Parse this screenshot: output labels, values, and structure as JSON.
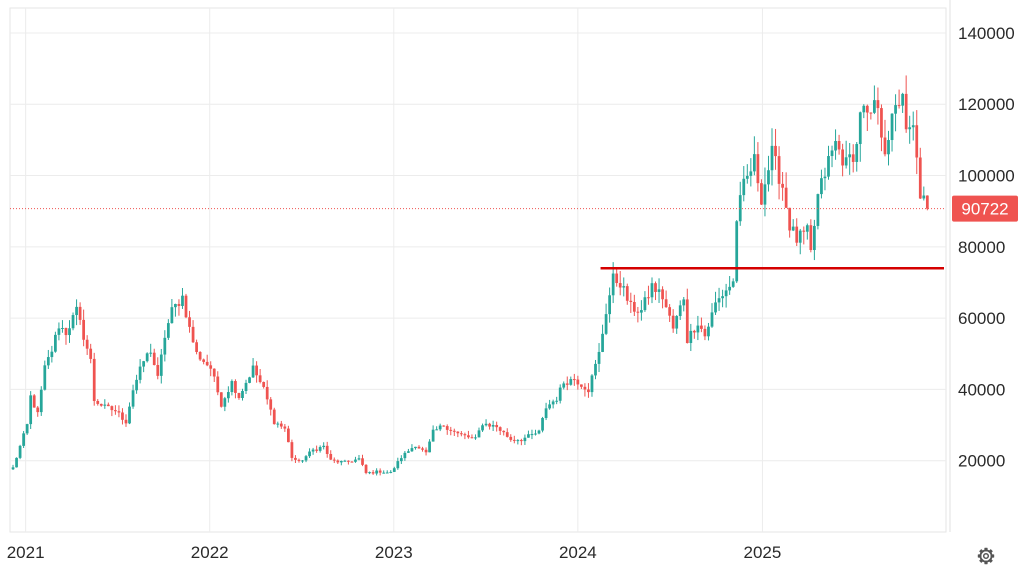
{
  "chart_data": {
    "type": "candlestick",
    "x_tick_labels": [
      "2021",
      "2022",
      "2023",
      "2024",
      "2025"
    ],
    "y_tick_labels": [
      "20000",
      "40000",
      "60000",
      "80000",
      "100000",
      "120000",
      "140000"
    ],
    "y_ticks": [
      20000,
      40000,
      60000,
      80000,
      100000,
      120000,
      140000
    ],
    "ylim": [
      0,
      147000
    ],
    "xlim": [
      "2020-12-01",
      "2025-12-31"
    ],
    "grid": true,
    "current_price": 90722,
    "current_price_label": "90722",
    "horizontal_level": 74000,
    "colors": {
      "up": "#26a69a",
      "down": "#ef5350",
      "level_line": "#d50000",
      "grid": "#ececec"
    },
    "path": [
      [
        "2020-12-07",
        18000
      ],
      [
        "2021-01-04",
        30000
      ],
      [
        "2021-01-11",
        38000
      ],
      [
        "2021-01-25",
        33000
      ],
      [
        "2021-02-08",
        46000
      ],
      [
        "2021-02-22",
        51000
      ],
      [
        "2021-03-08",
        58000
      ],
      [
        "2021-03-22",
        56000
      ],
      [
        "2021-04-12",
        62000
      ],
      [
        "2021-04-26",
        55000
      ],
      [
        "2021-05-10",
        48000
      ],
      [
        "2021-05-17",
        37000
      ],
      [
        "2021-06-07",
        35000
      ],
      [
        "2021-06-28",
        34000
      ],
      [
        "2021-07-19",
        31000
      ],
      [
        "2021-08-02",
        40000
      ],
      [
        "2021-08-23",
        48000
      ],
      [
        "2021-09-06",
        51000
      ],
      [
        "2021-09-20",
        43000
      ],
      [
        "2021-10-04",
        55000
      ],
      [
        "2021-10-18",
        62000
      ],
      [
        "2021-11-08",
        66000
      ],
      [
        "2021-11-22",
        57000
      ],
      [
        "2021-12-06",
        50000
      ],
      [
        "2022-01-03",
        46000
      ],
      [
        "2022-01-24",
        36000
      ],
      [
        "2022-02-14",
        42000
      ],
      [
        "2022-02-28",
        38000
      ],
      [
        "2022-03-28",
        46000
      ],
      [
        "2022-04-18",
        40000
      ],
      [
        "2022-05-09",
        31000
      ],
      [
        "2022-05-30",
        29000
      ],
      [
        "2022-06-13",
        21000
      ],
      [
        "2022-06-27",
        19500
      ],
      [
        "2022-07-25",
        23000
      ],
      [
        "2022-08-15",
        24000
      ],
      [
        "2022-08-29",
        20000
      ],
      [
        "2022-09-26",
        19500
      ],
      [
        "2022-10-24",
        20500
      ],
      [
        "2022-11-07",
        16500
      ],
      [
        "2022-12-05",
        17000
      ],
      [
        "2022-12-26",
        16600
      ],
      [
        "2023-01-16",
        21000
      ],
      [
        "2023-02-13",
        24500
      ],
      [
        "2023-03-06",
        22000
      ],
      [
        "2023-03-20",
        28000
      ],
      [
        "2023-04-10",
        30000
      ],
      [
        "2023-05-08",
        27500
      ],
      [
        "2023-06-12",
        26000
      ],
      [
        "2023-06-26",
        30500
      ],
      [
        "2023-07-24",
        29500
      ],
      [
        "2023-08-21",
        26000
      ],
      [
        "2023-09-11",
        26000
      ],
      [
        "2023-10-16",
        28000
      ],
      [
        "2023-10-30",
        35000
      ],
      [
        "2023-11-20",
        37500
      ],
      [
        "2023-12-04",
        42000
      ],
      [
        "2023-12-25",
        43000
      ],
      [
        "2024-01-22",
        40000
      ],
      [
        "2024-02-12",
        50000
      ],
      [
        "2024-02-26",
        62000
      ],
      [
        "2024-03-11",
        71000
      ],
      [
        "2024-03-25",
        70000
      ],
      [
        "2024-04-15",
        63000
      ],
      [
        "2024-05-06",
        62000
      ],
      [
        "2024-05-27",
        69000
      ],
      [
        "2024-06-17",
        66000
      ],
      [
        "2024-07-08",
        57000
      ],
      [
        "2024-07-29",
        66000
      ],
      [
        "2024-08-05",
        54000
      ],
      [
        "2024-08-26",
        59000
      ],
      [
        "2024-09-09",
        55000
      ],
      [
        "2024-09-30",
        64000
      ],
      [
        "2024-10-21",
        68000
      ],
      [
        "2024-11-04",
        70000
      ],
      [
        "2024-11-11",
        88000
      ],
      [
        "2024-11-25",
        97000
      ],
      [
        "2024-12-16",
        104000
      ],
      [
        "2024-12-30",
        94000
      ],
      [
        "2025-01-20",
        106000
      ],
      [
        "2025-02-10",
        97000
      ],
      [
        "2025-02-24",
        86000
      ],
      [
        "2025-03-10",
        82000
      ],
      [
        "2025-03-31",
        84000
      ],
      [
        "2025-04-07",
        78000
      ],
      [
        "2025-04-21",
        94000
      ],
      [
        "2025-05-12",
        104000
      ],
      [
        "2025-05-26",
        109000
      ],
      [
        "2025-06-16",
        103000
      ],
      [
        "2025-07-07",
        108000
      ],
      [
        "2025-07-14",
        119000
      ],
      [
        "2025-08-04",
        115000
      ],
      [
        "2025-08-11",
        121000
      ],
      [
        "2025-09-01",
        108000
      ],
      [
        "2025-09-15",
        115000
      ],
      [
        "2025-10-06",
        124000
      ],
      [
        "2025-10-13",
        111000
      ],
      [
        "2025-10-27",
        113000
      ],
      [
        "2025-11-03",
        104000
      ],
      [
        "2025-11-10",
        95000
      ],
      [
        "2025-11-24",
        90722
      ]
    ]
  },
  "toolbar": {
    "settings_icon": "gear-icon"
  }
}
